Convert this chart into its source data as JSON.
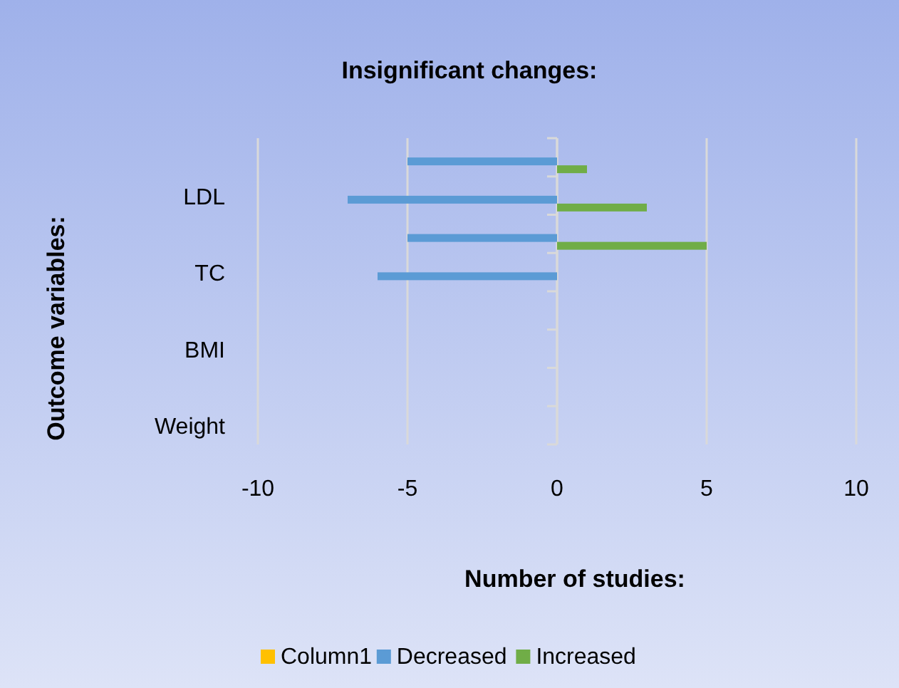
{
  "chart_data": {
    "type": "bar",
    "orientation": "horizontal",
    "title": "Insignificant changes:",
    "xlabel": "Number of studies:",
    "ylabel": "Outcome variables:",
    "categories": [
      null,
      "LDL",
      null,
      "TC",
      null,
      "BMI",
      null,
      "Weight"
    ],
    "series": [
      {
        "name": "Column1",
        "color": "#ffc000",
        "values": [
          null,
          null,
          null,
          null,
          null,
          null,
          null,
          null
        ]
      },
      {
        "name": "Decreased",
        "color": "#5b9bd5",
        "values": [
          -5,
          -7,
          -5,
          -6,
          null,
          null,
          null,
          null
        ]
      },
      {
        "name": "Increased",
        "color": "#70ad47",
        "values": [
          1,
          3,
          5,
          null,
          null,
          null,
          null,
          null
        ]
      }
    ],
    "xlim": [
      -10,
      10
    ],
    "xticks": [
      -10,
      -5,
      0,
      5,
      10
    ],
    "grid": "x",
    "legend": "bottom"
  }
}
